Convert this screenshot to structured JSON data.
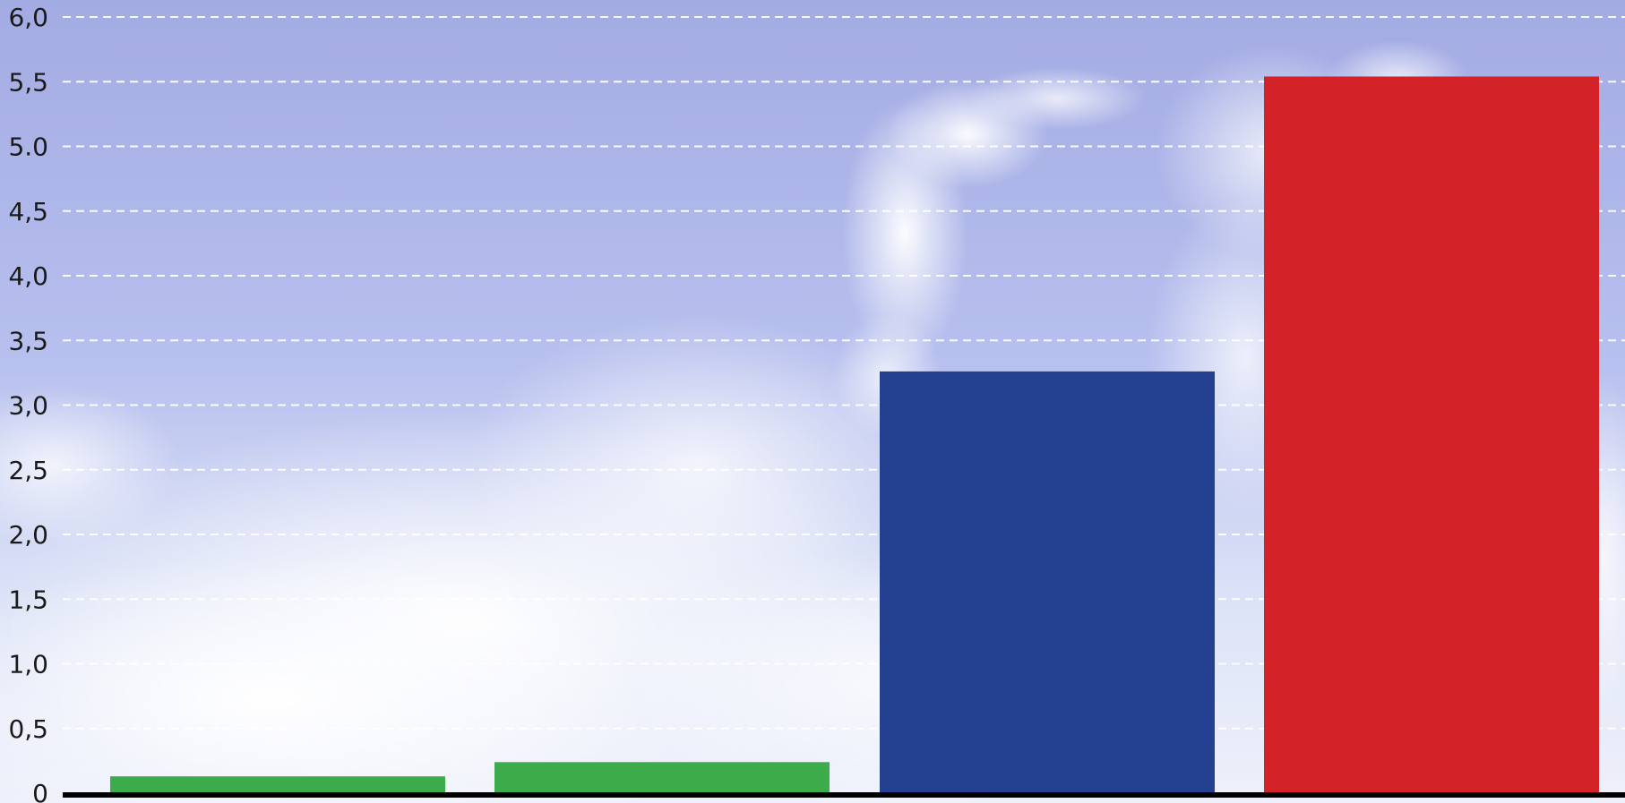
{
  "chart_data": {
    "type": "bar",
    "categories": [
      "",
      "",
      "",
      ""
    ],
    "values": [
      0.13,
      0.24,
      3.26,
      5.54
    ],
    "bar_colors": [
      "#3cac4a",
      "#3cac4a",
      "#244090",
      "#d42229"
    ],
    "title": "",
    "xlabel": "",
    "ylabel": "",
    "ylim": [
      0,
      6.0
    ],
    "y_ticks": [
      0,
      0.5,
      1.0,
      1.5,
      2.0,
      2.5,
      3.0,
      3.5,
      4.0,
      4.5,
      5.0,
      5.5,
      6.0
    ],
    "y_tick_labels": [
      "0",
      "0,5",
      "1,0",
      "1,5",
      "2,0",
      "2,5",
      "3,0",
      "3,5",
      "4,0",
      "4,5",
      "5.0",
      "5,5",
      "6,0"
    ],
    "grid": true,
    "legend": "none",
    "background": "sky-with-clouds"
  }
}
